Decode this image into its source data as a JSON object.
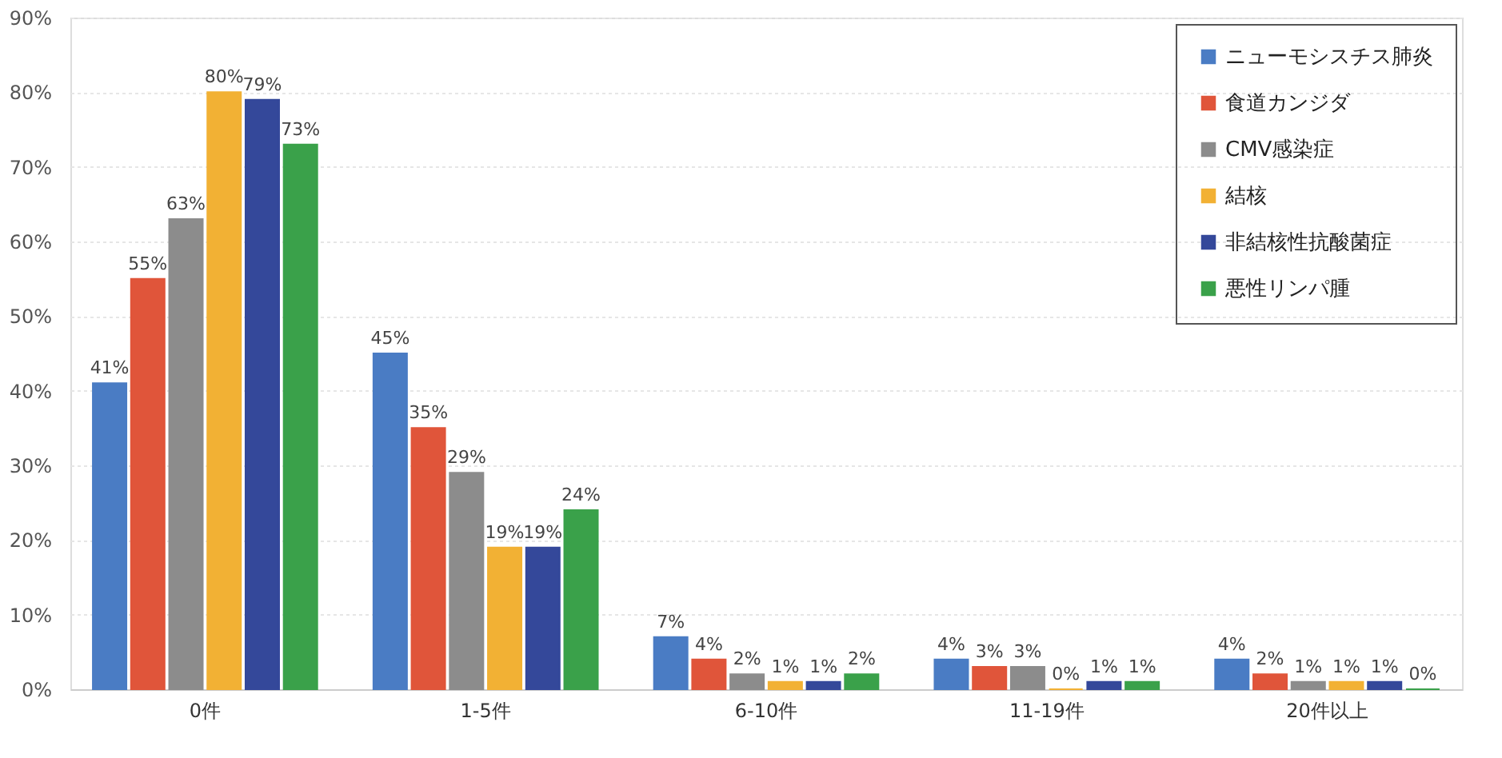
{
  "chart_data": {
    "type": "bar",
    "categories": [
      "0件",
      "1-5件",
      "6-10件",
      "11-19件",
      "20件以上"
    ],
    "series": [
      {
        "name": "ニューモシスチス肺炎",
        "color": "#4a7cc4",
        "values": [
          41,
          45,
          7,
          4,
          4
        ],
        "value_labels": [
          "41%",
          "45%",
          "7%",
          "4%",
          "4%"
        ]
      },
      {
        "name": "食道カンジダ",
        "color": "#e0553a",
        "values": [
          55,
          35,
          4,
          3,
          2
        ],
        "value_labels": [
          "55%",
          "35%",
          "4%",
          "3%",
          "2%"
        ]
      },
      {
        "name": "CMV感染症",
        "color": "#8c8c8c",
        "values": [
          63,
          29,
          2,
          3,
          1
        ],
        "value_labels": [
          "63%",
          "29%",
          "2%",
          "3%",
          "1%"
        ]
      },
      {
        "name": "結核",
        "color": "#f2b134",
        "values": [
          80,
          19,
          1,
          0,
          1
        ],
        "value_labels": [
          "80%",
          "19%",
          "1%",
          "0%",
          "1%"
        ]
      },
      {
        "name": "非結核性抗酸菌症",
        "color": "#34489a",
        "values": [
          79,
          19,
          1,
          1,
          1
        ],
        "value_labels": [
          "79%",
          "19%",
          "1%",
          "1%",
          "1%"
        ]
      },
      {
        "name": "悪性リンパ腫",
        "color": "#3aa14a",
        "values": [
          73,
          24,
          2,
          1,
          0
        ],
        "value_labels": [
          "73%",
          "24%",
          "2%",
          "1%",
          "0%"
        ]
      }
    ],
    "ylim": [
      0,
      90
    ],
    "yticks": [
      {
        "value": 0,
        "label": "0%"
      },
      {
        "value": 10,
        "label": "10%"
      },
      {
        "value": 20,
        "label": "20%"
      },
      {
        "value": 30,
        "label": "30%"
      },
      {
        "value": 40,
        "label": "40%"
      },
      {
        "value": 50,
        "label": "50%"
      },
      {
        "value": 60,
        "label": "60%"
      },
      {
        "value": 70,
        "label": "70%"
      },
      {
        "value": 80,
        "label": "80%"
      },
      {
        "value": 90,
        "label": "90%"
      }
    ],
    "grid": "y",
    "legend": "top right"
  }
}
